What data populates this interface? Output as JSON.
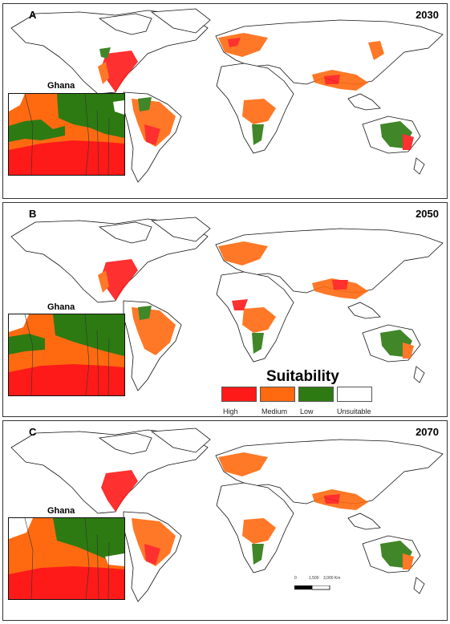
{
  "panels": [
    {
      "letter": "A",
      "year": "2030",
      "inset_title": "Ghana"
    },
    {
      "letter": "B",
      "year": "2050",
      "inset_title": "Ghana"
    },
    {
      "letter": "C",
      "year": "2070",
      "inset_title": "Ghana"
    }
  ],
  "legend": {
    "title": "Suitability",
    "classes": [
      {
        "label": "High",
        "color": "#ff1a1a"
      },
      {
        "label": "Medium",
        "color": "#ff6a10"
      },
      {
        "label": "Low",
        "color": "#2d7a12"
      },
      {
        "label": "Unsuitable",
        "color": "#ffffff"
      }
    ]
  },
  "scale_bar": {
    "labels": [
      "0",
      "1,500",
      "3,000 Km"
    ]
  },
  "colors": {
    "land": "#ffffff",
    "outline": "#000000",
    "inset_bg": "#e8e8e8"
  }
}
